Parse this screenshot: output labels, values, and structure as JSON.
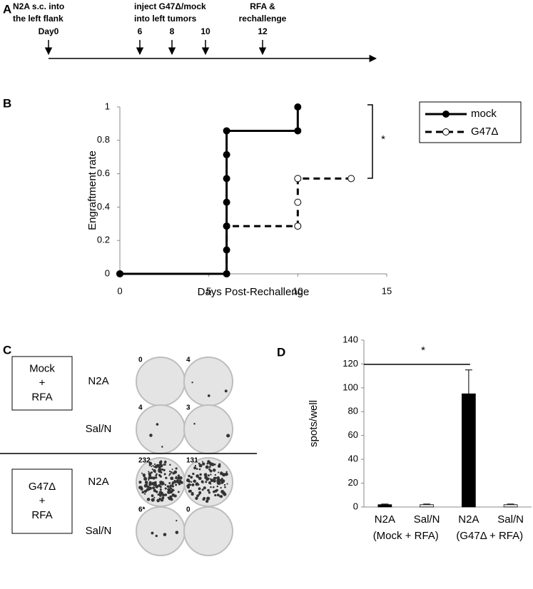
{
  "panels": [
    "A",
    "B",
    "C",
    "D"
  ],
  "timeline": {
    "notes": [
      [
        "N2A s.c. into",
        "the left flank"
      ],
      [
        "inject G47Δ/mock",
        "into left tumors"
      ],
      [
        "RFA &",
        "rechallenge"
      ]
    ],
    "days": [
      "Day0",
      "6",
      "8",
      "10",
      "12"
    ]
  },
  "panel_c": {
    "groups": [
      {
        "lines": [
          "Mock",
          "+",
          "RFA"
        ],
        "rows": [
          {
            "label": "N2A",
            "counts": [
              "0",
              "4"
            ]
          },
          {
            "label": "Sal/N",
            "counts": [
              "4",
              "3"
            ]
          }
        ]
      },
      {
        "lines": [
          "G47Δ",
          "+",
          "RFA"
        ],
        "rows": [
          {
            "label": "N2A",
            "counts": [
              "232",
              "131"
            ]
          },
          {
            "label": "Sal/N",
            "counts": [
              "6*",
              "0"
            ]
          }
        ]
      }
    ]
  },
  "chart_data": [
    {
      "type": "line",
      "x_label": "Days Post-Rechallenge",
      "y_label": "Engraftment rate",
      "xlim": [
        0,
        15
      ],
      "xticks": [
        0,
        5,
        10,
        15
      ],
      "ylim": [
        0,
        1
      ],
      "yticks": [
        0,
        0.2,
        0.4,
        0.6,
        0.8,
        1
      ],
      "legend": "right",
      "annotation": "*",
      "series": [
        {
          "name": "mock",
          "color": "#000000",
          "dash": false,
          "marker": "filled",
          "x": [
            0,
            6,
            6,
            6,
            6,
            6,
            6,
            6,
            10,
            10
          ],
          "values": [
            0,
            0,
            0.143,
            0.286,
            0.429,
            0.571,
            0.714,
            0.857,
            0.857,
            1
          ]
        },
        {
          "name": "G47Δ",
          "color": "#000000",
          "dash": true,
          "marker": "open",
          "x": [
            0,
            6,
            6,
            10,
            10,
            10,
            13
          ],
          "values": [
            0,
            0,
            0.286,
            0.286,
            0.429,
            0.571,
            0.571
          ]
        }
      ]
    },
    {
      "type": "bar",
      "y_label": "spots/well",
      "ylim": [
        0,
        140
      ],
      "yticks": [
        0,
        20,
        40,
        60,
        80,
        100,
        120,
        140
      ],
      "categories": [
        "N2A",
        "Sal/N",
        "N2A",
        "Sal/N"
      ],
      "groups": [
        "(Mock + RFA)",
        "(G47Δ + RFA)"
      ],
      "values": [
        2,
        2,
        95,
        2
      ],
      "errors": [
        0.5,
        0.5,
        20,
        0.5
      ],
      "colors": [
        "#000000",
        "#d9d9d9",
        "#000000",
        "#d9d9d9"
      ],
      "annotation": "*"
    }
  ]
}
